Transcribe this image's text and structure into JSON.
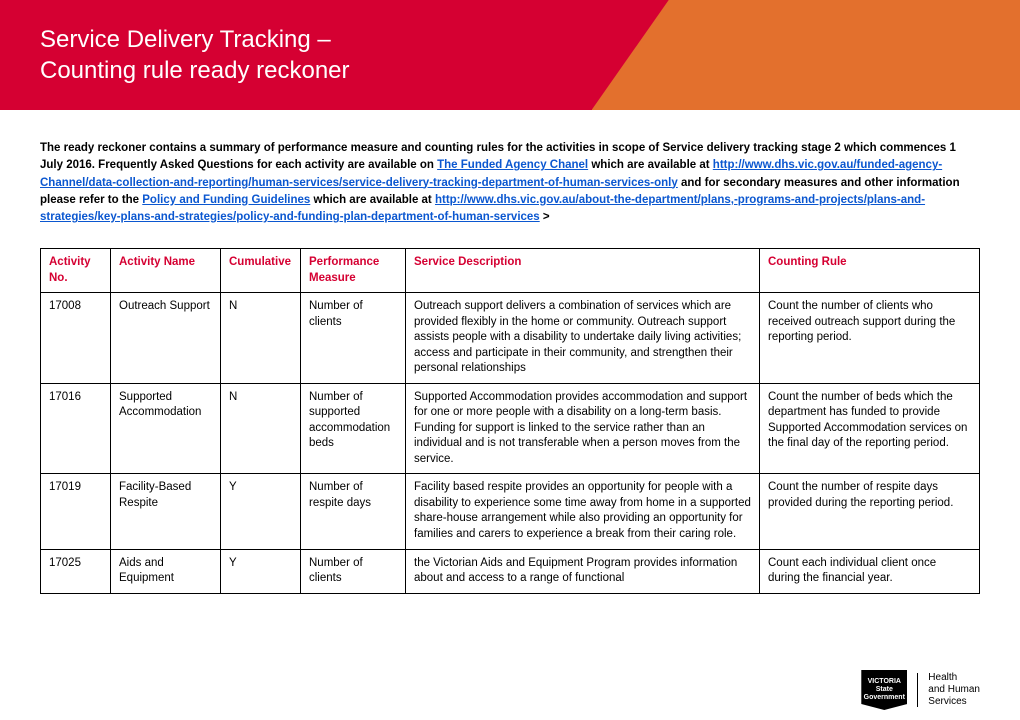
{
  "brand_colors": {
    "red": "#d50032",
    "orange": "#e3702d",
    "link": "#0b57d0"
  },
  "title_line1": "Service Delivery Tracking –",
  "title_line2": "Counting rule ready reckoner",
  "intro": {
    "t1": "The ready reckoner contains a summary of performance measure and counting rules for the activities in scope of Service delivery tracking stage 2 which commences 1 July 2016. Frequently Asked Questions for each activity are available on ",
    "link1": "The Funded Agency Chanel",
    "t2": " which are available at ",
    "link2": "http://www.dhs.vic.gov.au/funded-agency-Channel/data-collection-and-reporting/human-services/service-delivery-tracking-department-of-human-services-only",
    "t3": " and for secondary measures and other information please refer to the ",
    "link3": "Policy and Funding Guidelines",
    "t4": " which are available at ",
    "link4": "http://www.dhs.vic.gov.au/about-the-department/plans,-programs-and-projects/plans-and-strategies/key-plans-and-strategies/policy-and-funding-plan-department-of-human-services",
    "t5": ">"
  },
  "columns": [
    "Activity No.",
    "Activity Name",
    "Cumulative",
    "Performance Measure",
    "Service Description",
    "Counting Rule"
  ],
  "rows": [
    {
      "no": "17008",
      "name": "Outreach Support",
      "cum": "N",
      "pm": "Number of clients",
      "desc": "Outreach support delivers a combination of services which are provided flexibly in the home or community. Outreach support assists people with a disability to undertake daily living activities; access and participate in their community, and strengthen their personal relationships",
      "rule": "Count the number of clients who received outreach support during the reporting period."
    },
    {
      "no": "17016",
      "name": "Supported Accommodation",
      "cum": "N",
      "pm": "Number of supported accommodation beds",
      "desc": "Supported Accommodation provides accommodation and support for one or more people with a disability on a long-term basis. Funding for support is linked to the service rather than an individual and is not transferable when a person moves from the service.",
      "rule": "Count the number of beds which the department has funded to provide Supported Accommodation services on the final day of the reporting period."
    },
    {
      "no": "17019",
      "name": "Facility-Based Respite",
      "cum": "Y",
      "pm": "Number of respite days",
      "desc": "Facility based respite provides an opportunity for people with a disability to experience some time away from home in a supported share-house arrangement while also providing an opportunity for families and carers to experience a break from their caring role.",
      "rule": "Count the number of respite days provided during the reporting period."
    },
    {
      "no": "17025",
      "name": "Aids and Equipment",
      "cum": "Y",
      "pm": "Number of clients",
      "desc": "the Victorian Aids and Equipment Program provides information about and access to a range of functional",
      "rule": "Count each individual client once during the financial year."
    }
  ],
  "footer": {
    "logo_text": "VICTORIA State Government",
    "dept_line1": "Health",
    "dept_line2": "and Human",
    "dept_line3": "Services"
  }
}
